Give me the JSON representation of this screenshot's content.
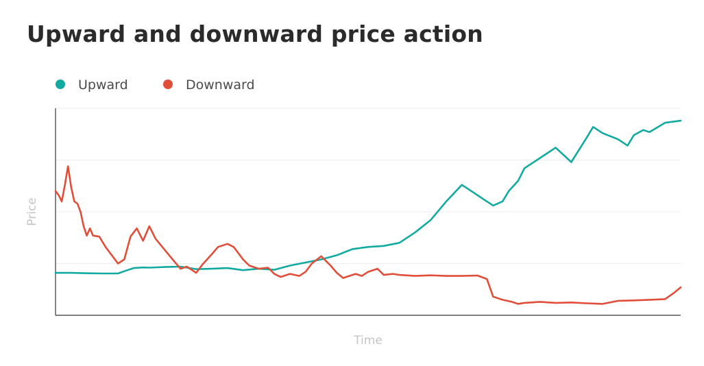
{
  "chart_data": {
    "type": "line",
    "title": "Upward and downward price action",
    "xlabel": "Time",
    "ylabel": "Price",
    "xlim": [
      0,
      200
    ],
    "ylim": [
      0,
      100
    ],
    "grid": "horizontal",
    "x_ticks_shown": false,
    "y_ticks_shown": false,
    "legend_position": "top-left",
    "series": [
      {
        "name": "Upward",
        "color": "#12aaa0",
        "x": [
          0,
          5,
          10,
          15,
          20,
          22,
          25,
          28,
          30,
          35,
          40,
          45,
          50,
          55,
          60,
          65,
          70,
          75,
          80,
          85,
          90,
          95,
          100,
          105,
          110,
          115,
          120,
          125,
          130,
          135,
          137,
          140,
          143,
          145,
          148,
          150,
          155,
          160,
          165,
          170,
          172,
          175,
          180,
          183,
          185,
          188,
          190,
          195,
          200
        ],
        "y": [
          20.5,
          20.5,
          20.3,
          20.2,
          20.2,
          21.3,
          22.8,
          23.1,
          23.0,
          23.3,
          23.5,
          22.3,
          22.5,
          22.8,
          21.8,
          22.5,
          22.0,
          24.0,
          25.5,
          27.0,
          29.0,
          32.0,
          33.0,
          33.5,
          35.0,
          40.0,
          46.0,
          55.0,
          63.0,
          58.0,
          56.0,
          53.0,
          55.0,
          60.0,
          65.0,
          71.0,
          76.0,
          81.0,
          74.0,
          86.0,
          91.0,
          88.0,
          85.0,
          82.0,
          87.0,
          89.5,
          88.5,
          93.0,
          94.0
        ]
      },
      {
        "name": "Downward",
        "color": "#e04e3a",
        "x": [
          0,
          1,
          2,
          3,
          4,
          5,
          6,
          7,
          8,
          9,
          10,
          11,
          12,
          14,
          16,
          17,
          20,
          22,
          24,
          26,
          28,
          30,
          32,
          35,
          38,
          40,
          42,
          45,
          47,
          50,
          52,
          55,
          57,
          60,
          62,
          65,
          68,
          70,
          72,
          75,
          78,
          80,
          82,
          85,
          88,
          90,
          92,
          94,
          96,
          98,
          100,
          103,
          105,
          108,
          110,
          115,
          120,
          125,
          130,
          135,
          138,
          140,
          143,
          146,
          148,
          150,
          155,
          160,
          165,
          170,
          175,
          180,
          185,
          190,
          195,
          198,
          200
        ],
        "y": [
          60.0,
          58.0,
          55.0,
          63.0,
          72.0,
          62.0,
          55.0,
          54.0,
          50.0,
          43.0,
          38.5,
          42.0,
          38.5,
          38.0,
          33.0,
          31.0,
          25.0,
          27.0,
          38.0,
          42.0,
          36.0,
          43.0,
          37.0,
          31.5,
          26.0,
          22.5,
          23.5,
          20.5,
          24.5,
          29.5,
          33.0,
          34.5,
          33.0,
          27.0,
          24.0,
          22.5,
          23.0,
          20.0,
          18.5,
          20.0,
          19.0,
          21.0,
          25.0,
          28.5,
          24.0,
          20.5,
          18.0,
          19.0,
          20.0,
          19.0,
          21.0,
          22.5,
          19.5,
          20.0,
          19.5,
          19.0,
          19.3,
          19.0,
          19.0,
          19.2,
          17.5,
          9.0,
          7.5,
          6.5,
          5.5,
          6.0,
          6.5,
          6.0,
          6.2,
          5.8,
          5.5,
          7.0,
          7.2,
          7.5,
          7.8,
          11.0,
          13.5
        ]
      }
    ]
  }
}
